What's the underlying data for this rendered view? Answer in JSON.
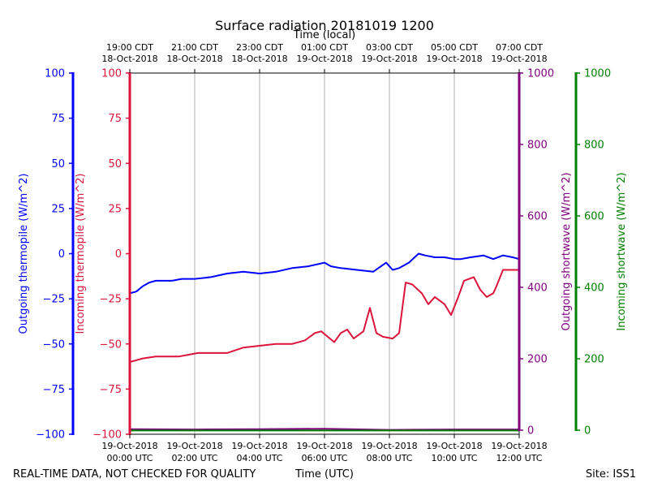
{
  "chart_data": {
    "type": "line",
    "title": "Surface radiation 20181019 1200",
    "top_axis_label": "Time (local)",
    "xlabel": "Time (UTC)",
    "footer_left": "REAL-TIME DATA, NOT CHECKED FOR QUALITY",
    "footer_right": "Site: ISS1",
    "x_range_hours_utc": [
      0,
      12
    ],
    "bottom_ticks": [
      {
        "hour": 0,
        "line1": "19-Oct-2018",
        "line2": "00:00 UTC"
      },
      {
        "hour": 2,
        "line1": "19-Oct-2018",
        "line2": "02:00 UTC"
      },
      {
        "hour": 4,
        "line1": "19-Oct-2018",
        "line2": "04:00 UTC"
      },
      {
        "hour": 6,
        "line1": "19-Oct-2018",
        "line2": "06:00 UTC"
      },
      {
        "hour": 8,
        "line1": "19-Oct-2018",
        "line2": "08:00 UTC"
      },
      {
        "hour": 10,
        "line1": "19-Oct-2018",
        "line2": "10:00 UTC"
      },
      {
        "hour": 12,
        "line1": "19-Oct-2018",
        "line2": "12:00 UTC"
      }
    ],
    "top_ticks": [
      {
        "hour": 0,
        "line1": "19:00 CDT",
        "line2": "18-Oct-2018"
      },
      {
        "hour": 2,
        "line1": "21:00 CDT",
        "line2": "18-Oct-2018"
      },
      {
        "hour": 4,
        "line1": "23:00 CDT",
        "line2": "18-Oct-2018"
      },
      {
        "hour": 6,
        "line1": "01:00 CDT",
        "line2": "19-Oct-2018"
      },
      {
        "hour": 8,
        "line1": "03:00 CDT",
        "line2": "19-Oct-2018"
      },
      {
        "hour": 10,
        "line1": "05:00 CDT",
        "line2": "19-Oct-2018"
      },
      {
        "hour": 12,
        "line1": "07:00 CDT",
        "line2": "19-Oct-2018"
      }
    ],
    "grid": "vertical at major ticks",
    "axes": {
      "outgoing_thermopile": {
        "label": "Outgoing thermopile (W/m^2)",
        "color": "#0000ff",
        "range": [
          -100,
          100
        ],
        "ticks": [
          "100",
          "75",
          "50",
          "25",
          "0",
          "−25",
          "−50",
          "−75",
          "−100"
        ]
      },
      "incoming_thermopile": {
        "label": "Incoming thermopile (W/m^2)",
        "color": "#dc143c",
        "range": [
          -100,
          100
        ],
        "ticks": [
          "100",
          "75",
          "50",
          "25",
          "0",
          "−25",
          "−50",
          "−75",
          "−100"
        ]
      },
      "outgoing_shortwave": {
        "label": "Outgoing shortwave (W/m^2)",
        "color": "#800080",
        "range": [
          0,
          1000
        ],
        "ticks": [
          "1000",
          "800",
          "600",
          "400",
          "200",
          "0"
        ]
      },
      "incoming_shortwave": {
        "label": "Incoming shortwave (W/m^2)",
        "color": "#008000",
        "range": [
          0,
          1000
        ],
        "ticks": [
          "1000",
          "800",
          "600",
          "400",
          "200",
          "0"
        ]
      }
    },
    "series": [
      {
        "name": "Outgoing thermopile",
        "axis": "outgoing_thermopile",
        "color": "#0000ff",
        "x": [
          0,
          0.2,
          0.4,
          0.6,
          0.8,
          1.0,
          1.3,
          1.6,
          2.0,
          2.5,
          3.0,
          3.5,
          4.0,
          4.5,
          5.0,
          5.5,
          6.0,
          6.2,
          6.5,
          7.0,
          7.5,
          7.9,
          8.1,
          8.3,
          8.6,
          8.9,
          9.1,
          9.4,
          9.7,
          10.0,
          10.2,
          10.5,
          10.9,
          11.2,
          11.5,
          11.8,
          12.0
        ],
        "y": [
          -22,
          -21,
          -18,
          -16,
          -15,
          -15,
          -15,
          -14,
          -14,
          -13,
          -11,
          -10,
          -11,
          -10,
          -8,
          -7,
          -5,
          -7,
          -8,
          -9,
          -10,
          -5,
          -9,
          -8,
          -5,
          0,
          -1,
          -2,
          -2,
          -3,
          -3,
          -2,
          -1,
          -3,
          -1,
          -2,
          -3
        ]
      },
      {
        "name": "Incoming thermopile",
        "axis": "incoming_thermopile",
        "color": "#dc143c",
        "x": [
          0,
          0.2,
          0.4,
          0.8,
          1.2,
          1.5,
          1.8,
          2.1,
          2.5,
          3.0,
          3.5,
          4.0,
          4.5,
          5.0,
          5.4,
          5.7,
          5.9,
          6.1,
          6.3,
          6.5,
          6.7,
          6.9,
          7.2,
          7.4,
          7.6,
          7.8,
          8.1,
          8.3,
          8.5,
          8.7,
          9.0,
          9.2,
          9.4,
          9.7,
          9.9,
          10.1,
          10.3,
          10.6,
          10.8,
          11.0,
          11.2,
          11.3,
          11.5,
          11.7,
          12.0
        ],
        "y": [
          -60,
          -59,
          -58,
          -57,
          -57,
          -57,
          -56,
          -55,
          -55,
          -55,
          -52,
          -51,
          -50,
          -50,
          -48,
          -44,
          -43,
          -46,
          -49,
          -44,
          -42,
          -47,
          -43,
          -30,
          -44,
          -46,
          -47,
          -44,
          -16,
          -17,
          -22,
          -28,
          -24,
          -28,
          -34,
          -25,
          -15,
          -13,
          -20,
          -24,
          -22,
          -18,
          -9,
          -9,
          -9
        ]
      },
      {
        "name": "Outgoing shortwave",
        "axis": "outgoing_shortwave",
        "color": "#800080",
        "x": [
          0,
          2,
          4,
          6,
          8,
          10,
          12
        ],
        "y": [
          3,
          2,
          3,
          4,
          1,
          2,
          2
        ]
      },
      {
        "name": "Incoming shortwave",
        "axis": "incoming_shortwave",
        "color": "#008000",
        "x": [
          0,
          2,
          4,
          6,
          8,
          10,
          12
        ],
        "y": [
          -1,
          -1,
          -1,
          -1,
          -1,
          -1,
          -1
        ]
      }
    ]
  }
}
